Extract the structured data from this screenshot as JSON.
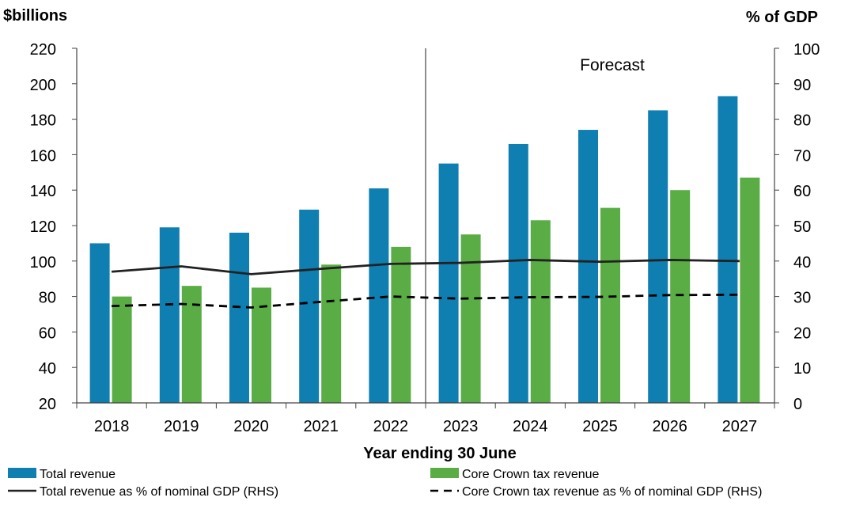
{
  "chart_data": {
    "type": "bar",
    "left_axis_title": "$billions",
    "right_axis_title": "% of GDP",
    "xlabel": "Year ending 30 June",
    "annotation": "Forecast",
    "forecast_from": "2023",
    "categories": [
      "2018",
      "2019",
      "2020",
      "2021",
      "2022",
      "2023",
      "2024",
      "2025",
      "2026",
      "2027"
    ],
    "y_left": {
      "min": 20,
      "max": 220,
      "step": 20,
      "ticks": [
        "20",
        "40",
        "60",
        "80",
        "100",
        "120",
        "140",
        "160",
        "180",
        "200",
        "220"
      ]
    },
    "y_right": {
      "min": 0,
      "max": 100,
      "step": 10,
      "ticks": [
        "0",
        "10",
        "20",
        "30",
        "40",
        "50",
        "60",
        "70",
        "80",
        "90",
        "100"
      ]
    },
    "series": [
      {
        "name": "Total revenue",
        "kind": "bar",
        "axis": "left",
        "color": "#0f7fb1",
        "values": [
          110,
          119,
          116,
          129,
          141,
          155,
          166,
          174,
          185,
          193
        ]
      },
      {
        "name": "Core Crown tax revenue",
        "kind": "bar",
        "axis": "left",
        "color": "#5aac45",
        "values": [
          80,
          86,
          85,
          98,
          108,
          115,
          123,
          130,
          140,
          147
        ]
      },
      {
        "name": "Total revenue as % of nominal GDP (RHS)",
        "kind": "line",
        "axis": "right",
        "color": "#222222",
        "dash": "solid",
        "values": [
          37.0,
          38.5,
          36.3,
          37.8,
          39.2,
          39.5,
          40.3,
          39.8,
          40.3,
          40.0
        ]
      },
      {
        "name": "Core Crown tax revenue as % of nominal GDP (RHS)",
        "kind": "line",
        "axis": "right",
        "color": "#000000",
        "dash": "dashed",
        "values": [
          27.3,
          27.9,
          26.9,
          28.5,
          30.0,
          29.4,
          29.8,
          29.9,
          30.4,
          30.5
        ]
      }
    ],
    "grid": false,
    "legend_position": "bottom"
  }
}
